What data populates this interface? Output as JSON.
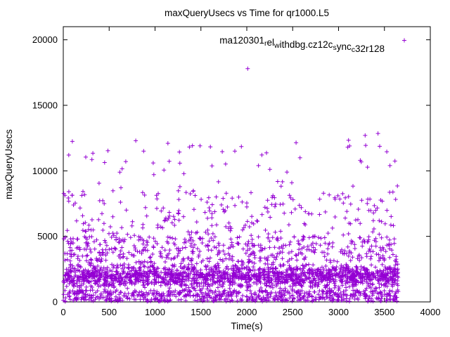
{
  "window": {
    "title": "maxQueryUsecs vs Time for qr1000.L5"
  },
  "chart_data": {
    "type": "scatter",
    "title": "maxQueryUsecs vs Time for qr1000.L5",
    "xlabel": "Time(s)",
    "ylabel": "maxQueryUsecs",
    "xlim": [
      0,
      4000
    ],
    "ylim": [
      0,
      21000
    ],
    "x_ticks": [
      0,
      500,
      1000,
      1500,
      2000,
      2500,
      3000,
      3500,
      4000
    ],
    "y_ticks": [
      0,
      5000,
      10000,
      15000,
      20000
    ],
    "grid": false,
    "legend": {
      "label": "ma120301_rel_withdbg.cz12c_sync_c32r128",
      "position": "top-center-inside",
      "marker": "+",
      "segments": [
        {
          "text": "ma120301",
          "sub": false
        },
        {
          "text": "r",
          "sub": true
        },
        {
          "text": "el",
          "sub": false
        },
        {
          "text": "w",
          "sub": true
        },
        {
          "text": "ithdbg.cz12c",
          "sub": false
        },
        {
          "text": "s",
          "sub": true
        },
        {
          "text": "ync",
          "sub": false
        },
        {
          "text": "c",
          "sub": true
        },
        {
          "text": "32r128",
          "sub": false
        }
      ]
    },
    "series": [
      {
        "name": "ma120301_rel_withdbg.cz12c_sync_c32r128",
        "color": "#9400d3",
        "marker": "+",
        "marker_half_px": 3,
        "x_range": [
          0,
          3650
        ],
        "n_points": 3000,
        "seed": 42,
        "y_bands": [
          {
            "weight": 0.2,
            "min": 30,
            "max": 900,
            "dist": "uniform"
          },
          {
            "weight": 0.54,
            "min": 900,
            "max": 3000,
            "dist": "triangular"
          },
          {
            "weight": 0.16,
            "min": 3000,
            "max": 5000,
            "dist": "uniform"
          },
          {
            "weight": 0.085,
            "min": 5000,
            "max": 8500,
            "dist": "uniform"
          },
          {
            "weight": 0.015,
            "min": 8500,
            "max": 12600,
            "dist": "uniform"
          }
        ],
        "outliers": [
          [
            2010,
            17800
          ],
          [
            3290,
            12700
          ],
          [
            1140,
            12100
          ],
          [
            3430,
            12850
          ],
          [
            790,
            12300
          ],
          [
            60,
            11200
          ],
          [
            245,
            11050
          ],
          [
            3120,
            11900
          ],
          [
            1870,
            11500
          ],
          [
            2580,
            11000
          ],
          [
            980,
            10600
          ],
          [
            3560,
            10400
          ]
        ]
      }
    ]
  }
}
